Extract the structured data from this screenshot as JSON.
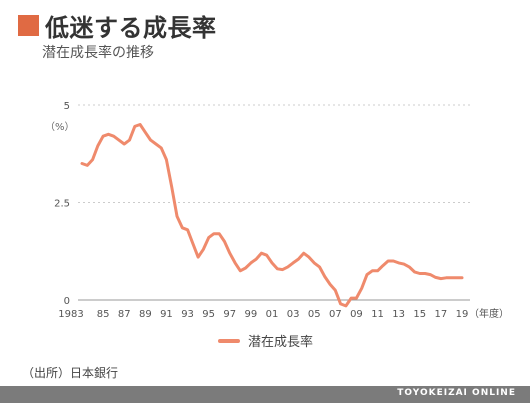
{
  "header": {
    "title": "低迷する成長率",
    "subtitle": "潜在成長率の推移"
  },
  "source": "（出所）日本銀行",
  "brand": "TOYOKEIZAI ONLINE",
  "colors": {
    "accent": "#e06a43",
    "line": "#ef8a6c",
    "grid": "#cccccc"
  },
  "chart_data": {
    "type": "line",
    "title": "潜在成長率の推移",
    "ylabel": "（%）",
    "xlabel": "（年度）",
    "ylim": [
      0,
      5
    ],
    "yticks": [
      0,
      2.5,
      5
    ],
    "ytick_labels": [
      "0",
      "2.5",
      "5"
    ],
    "grid": true,
    "legend_position": "bottom-center",
    "xtick_labels": [
      "1983",
      "85",
      "87",
      "89",
      "91",
      "93",
      "95",
      "97",
      "99",
      "01",
      "03",
      "05",
      "07",
      "09",
      "11",
      "13",
      "15",
      "17",
      "19"
    ],
    "xtick_years": [
      1983,
      1985,
      1987,
      1989,
      1991,
      1993,
      1995,
      1997,
      1999,
      2001,
      2003,
      2005,
      2007,
      2009,
      2011,
      2013,
      2015,
      2017,
      2019
    ],
    "xlim": [
      1983,
      2019
    ],
    "series": [
      {
        "name": "潜在成長率",
        "x": [
          1983,
          1983.5,
          1984,
          1984.5,
          1985,
          1985.5,
          1986,
          1986.5,
          1987,
          1987.5,
          1988,
          1988.5,
          1989,
          1989.5,
          1990,
          1990.5,
          1991,
          1991.5,
          1992,
          1992.5,
          1993,
          1993.5,
          1994,
          1994.5,
          1995,
          1995.5,
          1996,
          1996.5,
          1997,
          1997.5,
          1998,
          1998.5,
          1999,
          1999.5,
          2000,
          2000.5,
          2001,
          2001.5,
          2002,
          2002.5,
          2003,
          2003.5,
          2004,
          2004.5,
          2005,
          2005.5,
          2006,
          2006.5,
          2007,
          2007.5,
          2008,
          2008.5,
          2009,
          2009.5,
          2010,
          2010.5,
          2011,
          2011.5,
          2012,
          2012.5,
          2013,
          2013.5,
          2014,
          2014.5,
          2015,
          2015.5,
          2016,
          2016.5,
          2017,
          2017.5,
          2018,
          2018.5,
          2019
        ],
        "values": [
          3.5,
          3.45,
          3.6,
          3.95,
          4.2,
          4.25,
          4.2,
          4.1,
          4.0,
          4.1,
          4.45,
          4.5,
          4.3,
          4.1,
          4.0,
          3.9,
          3.6,
          2.9,
          2.15,
          1.85,
          1.8,
          1.45,
          1.1,
          1.3,
          1.6,
          1.7,
          1.7,
          1.5,
          1.2,
          0.95,
          0.75,
          0.82,
          0.95,
          1.05,
          1.2,
          1.15,
          0.95,
          0.8,
          0.78,
          0.85,
          0.95,
          1.05,
          1.2,
          1.1,
          0.95,
          0.85,
          0.6,
          0.4,
          0.25,
          -0.1,
          -0.15,
          0.05,
          0.05,
          0.3,
          0.65,
          0.75,
          0.75,
          0.88,
          1.0,
          1.0,
          0.95,
          0.92,
          0.85,
          0.72,
          0.68,
          0.68,
          0.65,
          0.58,
          0.55,
          0.57,
          0.57,
          0.57,
          0.57
        ]
      }
    ]
  }
}
